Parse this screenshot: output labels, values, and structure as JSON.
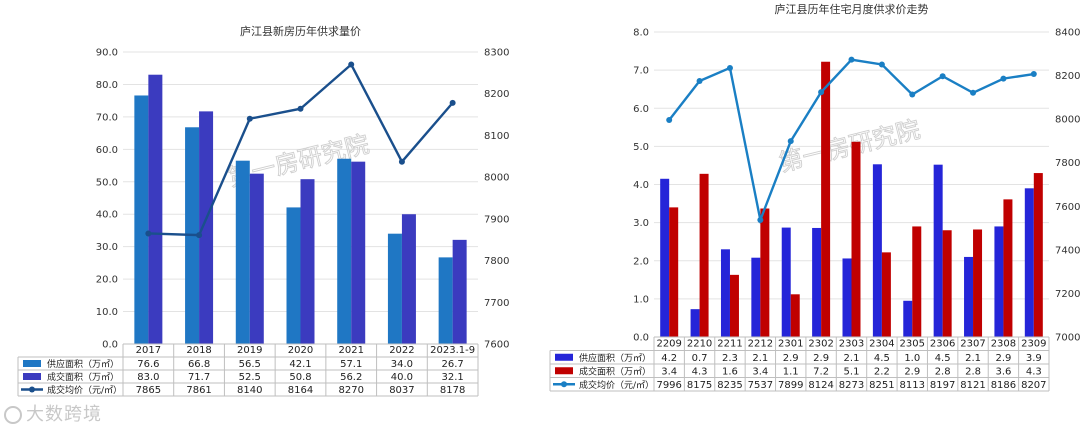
{
  "watermark": "第一房研究院",
  "brand": "大数跨境",
  "chart_data": [
    {
      "type": "bar",
      "title": "庐江县新房历年供求量价",
      "categories": [
        "2017",
        "2018",
        "2019",
        "2020",
        "2021",
        "2022",
        "2023.1-9"
      ],
      "series": [
        {
          "name": "供应面积（万㎡）",
          "kind": "bar",
          "axis": "left",
          "color": "#1f77c4",
          "values": [
            76.6,
            66.8,
            56.5,
            42.1,
            57.1,
            34.0,
            26.7
          ],
          "labels": [
            "76.6",
            "66.8",
            "56.5",
            "42.1",
            "57.1",
            "34.0",
            "26.7"
          ]
        },
        {
          "name": "成交面积（万㎡）",
          "kind": "bar",
          "axis": "left",
          "color": "#3b3bbf",
          "values": [
            83.0,
            71.7,
            52.5,
            50.8,
            56.2,
            40.0,
            32.1
          ],
          "labels": [
            "83.0",
            "71.7",
            "52.5",
            "50.8",
            "56.2",
            "40.0",
            "32.1"
          ]
        },
        {
          "name": "成交均价（元/㎡）",
          "kind": "line",
          "axis": "right",
          "color": "#1a4f8c",
          "values": [
            7865,
            7861,
            8140,
            8164,
            8270,
            8037,
            8178
          ],
          "labels": [
            "7865",
            "7861",
            "8140",
            "8164",
            "8270",
            "8037",
            "8178"
          ]
        }
      ],
      "ylim_left": [
        0,
        90
      ],
      "ylim_right": [
        7600,
        8300
      ],
      "left_ticks": [
        "0.0",
        "10.0",
        "20.0",
        "30.0",
        "40.0",
        "50.0",
        "60.0",
        "70.0",
        "80.0",
        "90.0"
      ],
      "right_ticks": [
        "7600",
        "7700",
        "7800",
        "7900",
        "8000",
        "8100",
        "8200",
        "8300"
      ],
      "legend": "bottom-table"
    },
    {
      "type": "bar",
      "title": "庐江县历年住宅月度供求价走势",
      "categories": [
        "2209",
        "2210",
        "2211",
        "2212",
        "2301",
        "2302",
        "2303",
        "2304",
        "2305",
        "2306",
        "2307",
        "2308",
        "2309"
      ],
      "series": [
        {
          "name": "供应面积（万㎡）",
          "kind": "bar",
          "axis": "left",
          "color": "#2525d8",
          "values": [
            4.15,
            0.73,
            2.3,
            2.08,
            2.87,
            2.86,
            2.06,
            4.53,
            0.95,
            4.52,
            2.1,
            2.9,
            3.9
          ],
          "labels": [
            "4.2",
            "0.7",
            "2.3",
            "2.1",
            "2.9",
            "2.9",
            "2.1",
            "4.5",
            "1.0",
            "4.5",
            "2.1",
            "2.9",
            "3.9"
          ]
        },
        {
          "name": "成交面积（万㎡）",
          "kind": "bar",
          "axis": "left",
          "color": "#c00000",
          "values": [
            3.4,
            4.28,
            1.63,
            3.37,
            1.12,
            7.22,
            5.12,
            2.22,
            2.9,
            2.8,
            2.82,
            3.61,
            4.3
          ],
          "labels": [
            "3.4",
            "4.3",
            "1.6",
            "3.4",
            "1.1",
            "7.2",
            "5.1",
            "2.2",
            "2.9",
            "2.8",
            "2.8",
            "3.6",
            "4.3"
          ]
        },
        {
          "name": "成交均价（元/㎡）",
          "kind": "line",
          "axis": "right",
          "color": "#1a7fc4",
          "values": [
            7996,
            8175,
            8235,
            7537,
            7899,
            8124,
            8273,
            8251,
            8113,
            8197,
            8121,
            8186,
            8207
          ],
          "labels": [
            "7996",
            "8175",
            "8235",
            "7537",
            "7899",
            "8124",
            "8273",
            "8251",
            "8113",
            "8197",
            "8121",
            "8186",
            "8207"
          ]
        }
      ],
      "ylim_left": [
        0,
        8
      ],
      "ylim_right": [
        7000,
        8400
      ],
      "left_ticks": [
        "0.0",
        "1.0",
        "2.0",
        "3.0",
        "4.0",
        "5.0",
        "6.0",
        "7.0",
        "8.0"
      ],
      "right_ticks": [
        "7000",
        "7200",
        "7400",
        "7600",
        "7800",
        "8000",
        "8200",
        "8400"
      ],
      "legend": "bottom-table"
    }
  ]
}
